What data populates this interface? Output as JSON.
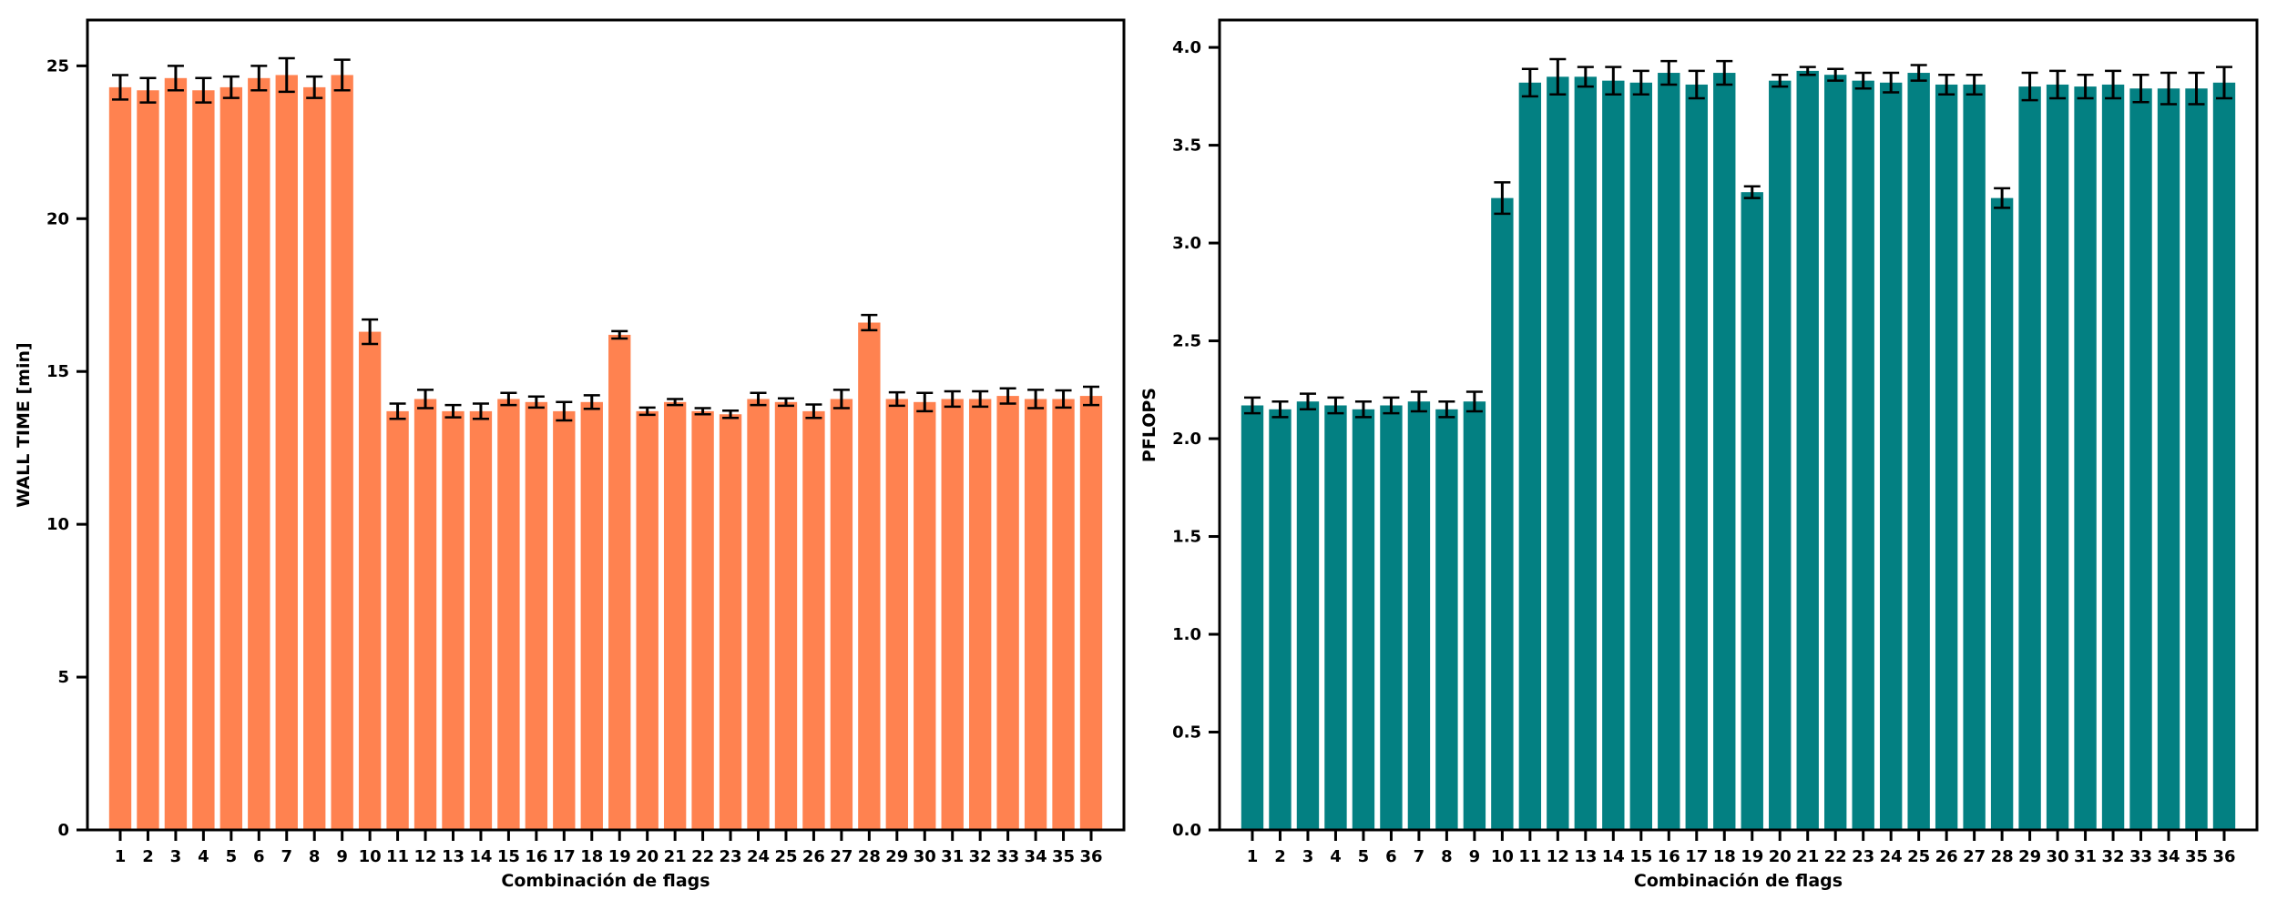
{
  "chart_data": [
    {
      "type": "bar",
      "title": "",
      "xlabel": "Combinación de flags",
      "ylabel": "WALL TIME [min]",
      "ylim": [
        0,
        26.5
      ],
      "yticks": [
        0,
        5,
        10,
        15,
        20,
        25
      ],
      "grid": false,
      "legend": "none",
      "color": "#ff8250",
      "categories": [
        "1",
        "2",
        "3",
        "4",
        "5",
        "6",
        "7",
        "8",
        "9",
        "10",
        "11",
        "12",
        "13",
        "14",
        "15",
        "16",
        "17",
        "18",
        "19",
        "20",
        "21",
        "22",
        "23",
        "24",
        "25",
        "26",
        "27",
        "28",
        "29",
        "30",
        "31",
        "32",
        "33",
        "34",
        "35",
        "36"
      ],
      "values": [
        24.3,
        24.2,
        24.6,
        24.2,
        24.3,
        24.6,
        24.7,
        24.3,
        24.7,
        16.3,
        13.7,
        14.1,
        13.7,
        13.7,
        14.1,
        14.0,
        13.7,
        14.0,
        16.2,
        13.7,
        14.0,
        13.7,
        13.6,
        14.1,
        14.0,
        13.7,
        14.1,
        16.6,
        14.1,
        14.0,
        14.1,
        14.1,
        14.2,
        14.1,
        14.1,
        14.2
      ],
      "errors": [
        0.4,
        0.4,
        0.4,
        0.4,
        0.35,
        0.4,
        0.55,
        0.35,
        0.5,
        0.4,
        0.25,
        0.3,
        0.2,
        0.25,
        0.2,
        0.18,
        0.3,
        0.22,
        0.12,
        0.12,
        0.1,
        0.1,
        0.12,
        0.2,
        0.12,
        0.22,
        0.3,
        0.25,
        0.22,
        0.3,
        0.25,
        0.25,
        0.25,
        0.3,
        0.28,
        0.3
      ]
    },
    {
      "type": "bar",
      "title": "",
      "xlabel": "Combinación de flags",
      "ylabel": "PFLOPS",
      "ylim": [
        0,
        4.14
      ],
      "yticks": [
        "0.0",
        "0.5",
        "1.0",
        "1.5",
        "2.0",
        "2.5",
        "3.0",
        "3.5",
        "4.0"
      ],
      "grid": false,
      "legend": "none",
      "color": "#038082",
      "categories": [
        "1",
        "2",
        "3",
        "4",
        "5",
        "6",
        "7",
        "8",
        "9",
        "10",
        "11",
        "12",
        "13",
        "14",
        "15",
        "16",
        "17",
        "18",
        "19",
        "20",
        "21",
        "22",
        "23",
        "24",
        "25",
        "26",
        "27",
        "28",
        "29",
        "30",
        "31",
        "32",
        "33",
        "34",
        "35",
        "36"
      ],
      "values": [
        2.17,
        2.15,
        2.19,
        2.17,
        2.15,
        2.17,
        2.19,
        2.15,
        2.19,
        3.23,
        3.82,
        3.85,
        3.85,
        3.83,
        3.82,
        3.87,
        3.81,
        3.87,
        3.26,
        3.83,
        3.88,
        3.86,
        3.83,
        3.82,
        3.87,
        3.81,
        3.81,
        3.23,
        3.8,
        3.81,
        3.8,
        3.81,
        3.79,
        3.79,
        3.79,
        3.82
      ],
      "errors": [
        0.04,
        0.04,
        0.04,
        0.04,
        0.04,
        0.04,
        0.05,
        0.04,
        0.05,
        0.08,
        0.07,
        0.09,
        0.05,
        0.07,
        0.06,
        0.06,
        0.07,
        0.06,
        0.03,
        0.03,
        0.02,
        0.03,
        0.04,
        0.05,
        0.04,
        0.05,
        0.05,
        0.05,
        0.07,
        0.07,
        0.06,
        0.07,
        0.07,
        0.08,
        0.08,
        0.08
      ]
    }
  ]
}
